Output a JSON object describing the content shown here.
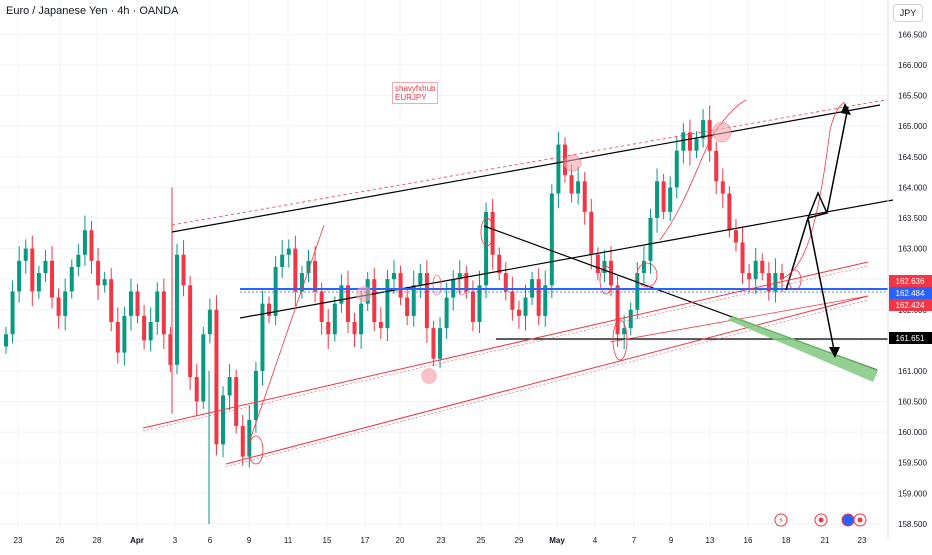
{
  "header": {
    "title": "Euro / Japanese Yen · 4h · OANDA",
    "currency": "JPY"
  },
  "annotation": {
    "line1": "shavyfxhub",
    "line2": "EURJPY"
  },
  "colors": {
    "up": "#089981",
    "down": "#f23645",
    "blue_level": "#2962ff",
    "black_lines": "#000000",
    "red_lines": "#f23645",
    "target_zone": "#7fc97f"
  },
  "chart_data": {
    "type": "candlestick",
    "ylim": [
      158.4,
      166.9
    ],
    "y_ticks": [
      "166.500",
      "166.000",
      "165.500",
      "165.000",
      "164.500",
      "164.000",
      "163.500",
      "163.000",
      "162.500",
      "162.000",
      "161.500",
      "161.000",
      "160.500",
      "160.000",
      "159.500",
      "159.000",
      "158.500"
    ],
    "x_ticks": [
      "23",
      "26",
      "28",
      "Apr",
      "3",
      "6",
      "9",
      "11",
      "15",
      "17",
      "20",
      "23",
      "25",
      "29",
      "May",
      "4",
      "7",
      "9",
      "13",
      "16",
      "18",
      "21",
      "23"
    ],
    "price_labels": [
      {
        "value": "162.636",
        "color": "#f23645"
      },
      {
        "value": "162.484",
        "color": "#2962ff"
      },
      {
        "value": "162.424",
        "color": "#f23645"
      },
      {
        "value": "161.651",
        "color": "#000000"
      }
    ],
    "horizontal_levels": {
      "blue": 162.484,
      "black": 161.651
    },
    "price_path": [
      161.6,
      162.3,
      162.8,
      163.0,
      162.3,
      162.6,
      162.8,
      162.2,
      161.9,
      162.3,
      162.7,
      162.9,
      163.3,
      162.8,
      162.4,
      162.5,
      161.8,
      161.3,
      161.9,
      162.3,
      161.9,
      161.5,
      161.8,
      162.3,
      161.6,
      161.1,
      162.9,
      162.4,
      160.9,
      160.5,
      161.6,
      162.0,
      159.8,
      160.6,
      160.9,
      160.1,
      159.6,
      160.2,
      161.0,
      162.1,
      161.9,
      162.7,
      162.9,
      163.0,
      162.3,
      162.6,
      162.8,
      162.3,
      161.8,
      161.6,
      162.1,
      162.4,
      161.8,
      161.6,
      162.1,
      162.5,
      161.8,
      161.7,
      162.5,
      162.6,
      162.2,
      161.9,
      162.4,
      162.6,
      161.7,
      161.2,
      161.7,
      162.2,
      162.5,
      162.6,
      162.3,
      161.8,
      162.4,
      163.6,
      162.9,
      162.6,
      162.3,
      162.0,
      161.9,
      162.2,
      162.5,
      161.9,
      162.4,
      163.9,
      164.7,
      164.2,
      163.9,
      164.1,
      163.6,
      162.9,
      162.6,
      162.8,
      162.4,
      161.6,
      161.7,
      162.0,
      162.6,
      162.8,
      163.5,
      164.1,
      163.6,
      164.0,
      164.6,
      164.9,
      164.6,
      164.8,
      165.1,
      164.6,
      164.1,
      163.9,
      163.3,
      163.1,
      162.6,
      162.5,
      162.8,
      162.6,
      162.3,
      162.6,
      162.5
    ]
  }
}
